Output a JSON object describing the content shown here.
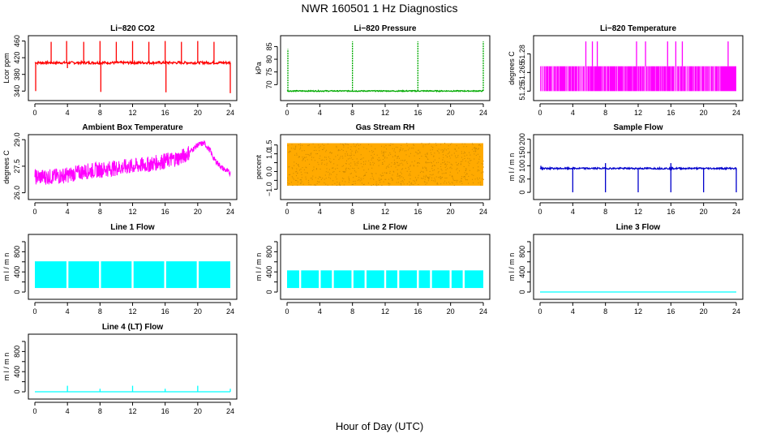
{
  "title": "NWR  160501  1 Hz Diagnostics",
  "xlabel": "Hour of Day (UTC)",
  "chart_data": [
    {
      "type": "line",
      "title": "Li−820 CO2",
      "ylabel": "Lcor ppm",
      "color": "#ff0000",
      "xlim": [
        0,
        24
      ],
      "xticks": [
        0,
        4,
        8,
        12,
        16,
        20,
        24
      ],
      "ylim": [
        325,
        465
      ],
      "yticks": [
        340,
        380,
        420,
        460
      ],
      "ytick_labels": [
        "340",
        "380",
        "420",
        "460"
      ],
      "baseline": 408,
      "noise": 3,
      "spikes": [
        {
          "x": 0.1,
          "y": 340
        },
        {
          "x": 2.0,
          "y": 458
        },
        {
          "x": 3.9,
          "y": 460
        },
        {
          "x": 4.0,
          "y": 395
        },
        {
          "x": 6.0,
          "y": 458
        },
        {
          "x": 8.0,
          "y": 460
        },
        {
          "x": 8.1,
          "y": 338
        },
        {
          "x": 10.0,
          "y": 458
        },
        {
          "x": 12.0,
          "y": 460
        },
        {
          "x": 14.0,
          "y": 458
        },
        {
          "x": 16.0,
          "y": 460
        },
        {
          "x": 16.1,
          "y": 337
        },
        {
          "x": 18.0,
          "y": 458
        },
        {
          "x": 20.0,
          "y": 460
        },
        {
          "x": 22.0,
          "y": 458
        },
        {
          "x": 24.0,
          "y": 335
        }
      ]
    },
    {
      "type": "line",
      "title": "Li−820 Pressure",
      "ylabel": "kPa",
      "color": "#00aa00",
      "xlim": [
        0,
        24
      ],
      "xticks": [
        0,
        4,
        8,
        12,
        16,
        20,
        24
      ],
      "ylim": [
        65,
        88
      ],
      "yticks": [
        70,
        75,
        80,
        85
      ],
      "ytick_labels": [
        "70",
        "75",
        "80",
        "85"
      ],
      "baseline": 67.5,
      "noise": 0.2,
      "spikes": [
        {
          "x": 0.1,
          "y": 84
        },
        {
          "x": 8.0,
          "y": 87
        },
        {
          "x": 16.0,
          "y": 87
        },
        {
          "x": 24.0,
          "y": 87
        }
      ]
    },
    {
      "type": "area",
      "title": "Li−820 Temperature",
      "ylabel": "degrees C",
      "color": "#ff00ff",
      "xlim": [
        0,
        24
      ],
      "xticks": [
        0,
        4,
        8,
        12,
        16,
        20,
        24
      ],
      "ylim": [
        51.245,
        51.292
      ],
      "yticks": [
        51.25,
        51.265,
        51.28
      ],
      "ytick_labels": [
        "51.25",
        "51.265",
        "51.28"
      ],
      "band": [
        51.25,
        51.27
      ],
      "spikes": [
        {
          "x": 5.6,
          "y": 51.29
        },
        {
          "x": 6.4,
          "y": 51.29
        },
        {
          "x": 7.0,
          "y": 51.29
        },
        {
          "x": 11.8,
          "y": 51.29
        },
        {
          "x": 12.9,
          "y": 51.29
        },
        {
          "x": 15.6,
          "y": 51.29
        },
        {
          "x": 16.6,
          "y": 51.29
        },
        {
          "x": 17.4,
          "y": 51.29
        },
        {
          "x": 23.0,
          "y": 51.29
        }
      ]
    },
    {
      "type": "line",
      "title": "Ambient Box Temperature",
      "ylabel": "degrees C",
      "color": "#ff00ff",
      "xlim": [
        0,
        24
      ],
      "xticks": [
        0,
        4,
        8,
        12,
        16,
        20,
        24
      ],
      "ylim": [
        25.8,
        29.1
      ],
      "yticks": [
        26.0,
        27.5,
        29.0
      ],
      "ytick_labels": [
        "26.0",
        "27.5",
        "29.0"
      ],
      "trend": [
        [
          0,
          26.9
        ],
        [
          2,
          26.9
        ],
        [
          4,
          27.0
        ],
        [
          6,
          27.2
        ],
        [
          8,
          27.3
        ],
        [
          10,
          27.4
        ],
        [
          12,
          27.5
        ],
        [
          14,
          27.6
        ],
        [
          16,
          27.8
        ],
        [
          18,
          28.0
        ],
        [
          19,
          28.3
        ],
        [
          20,
          28.7
        ],
        [
          20.8,
          28.8
        ],
        [
          21.5,
          28.4
        ],
        [
          22,
          27.9
        ],
        [
          23,
          27.4
        ],
        [
          24,
          27.1
        ]
      ],
      "noise": 0.45
    },
    {
      "type": "area",
      "title": "Gas Stream RH",
      "ylabel": "percent",
      "color": "#ffaa00",
      "xlim": [
        0,
        24
      ],
      "xticks": [
        0,
        4,
        8,
        12,
        16,
        20,
        24
      ],
      "ylim": [
        -1.4,
        1.9
      ],
      "yticks": [
        -1.0,
        -0.5,
        0.0,
        0.5,
        1.0,
        1.5
      ],
      "ytick_labels": [
        "−1.0",
        "",
        "0.0",
        "",
        "1.0",
        "1.5"
      ],
      "band": [
        -0.8,
        1.6
      ]
    },
    {
      "type": "line",
      "title": "Sample Flow",
      "ylabel": "m l / m n",
      "color": "#0000cc",
      "xlim": [
        0,
        24
      ],
      "xticks": [
        0,
        4,
        8,
        12,
        16,
        20,
        24
      ],
      "ylim": [
        -15,
        205
      ],
      "yticks": [
        0,
        50,
        100,
        150,
        200
      ],
      "ytick_labels": [
        "0",
        "50",
        "100",
        "150",
        "200"
      ],
      "baseline": 90,
      "noise": 3,
      "spikes": [
        {
          "x": 0.1,
          "y": 100
        },
        {
          "x": 4.0,
          "y": 0
        },
        {
          "x": 8.0,
          "y": 0
        },
        {
          "x": 8.0,
          "y": 110
        },
        {
          "x": 12.0,
          "y": 0
        },
        {
          "x": 16.0,
          "y": 0
        },
        {
          "x": 16.0,
          "y": 110
        },
        {
          "x": 20.0,
          "y": 0
        },
        {
          "x": 24.0,
          "y": 0
        }
      ]
    },
    {
      "type": "area",
      "title": "Line 1 Flow",
      "ylabel": "m l / m n",
      "color": "#00ffff",
      "xlim": [
        0,
        24
      ],
      "xticks": [
        0,
        4,
        8,
        12,
        16,
        20,
        24
      ],
      "ylim": [
        -80,
        1080
      ],
      "yticks": [
        0,
        200,
        400,
        600,
        800,
        1000
      ],
      "ytick_labels": [
        "0",
        "",
        "400",
        "",
        "800",
        ""
      ],
      "band": [
        80,
        610
      ],
      "gaps": [
        4,
        8,
        12,
        16,
        20
      ]
    },
    {
      "type": "area",
      "title": "Line 2 Flow",
      "ylabel": "m l / m n",
      "color": "#00ffff",
      "xlim": [
        0,
        24
      ],
      "xticks": [
        0,
        4,
        8,
        12,
        16,
        20,
        24
      ],
      "ylim": [
        -80,
        1080
      ],
      "yticks": [
        0,
        200,
        400,
        600,
        800,
        1000
      ],
      "ytick_labels": [
        "0",
        "",
        "400",
        "",
        "800",
        ""
      ],
      "band": [
        80,
        430
      ],
      "gaps": [
        1.6,
        4,
        5.6,
        8,
        9.6,
        12,
        13.6,
        16,
        17.6,
        20,
        21.6
      ]
    },
    {
      "type": "line",
      "title": "Line 3 Flow",
      "ylabel": "m l / m n",
      "color": "#00ffff",
      "xlim": [
        0,
        24
      ],
      "xticks": [
        0,
        4,
        8,
        12,
        16,
        20,
        24
      ],
      "ylim": [
        -80,
        1080
      ],
      "yticks": [
        0,
        200,
        400,
        600,
        800,
        1000
      ],
      "ytick_labels": [
        "0",
        "",
        "400",
        "",
        "800",
        ""
      ],
      "baseline": 0,
      "noise": 0
    },
    {
      "type": "line",
      "title": "Line 4 (LT) Flow",
      "ylabel": "m l / m n",
      "color": "#00ffff",
      "xlim": [
        0,
        24
      ],
      "xticks": [
        0,
        4,
        8,
        12,
        16,
        20,
        24
      ],
      "ylim": [
        -80,
        1080
      ],
      "yticks": [
        0,
        200,
        400,
        600,
        800,
        1000
      ],
      "ytick_labels": [
        "0",
        "",
        "400",
        "",
        "800",
        ""
      ],
      "baseline": 0,
      "noise": 0,
      "spikes": [
        {
          "x": 4.0,
          "y": 120
        },
        {
          "x": 8.0,
          "y": 60
        },
        {
          "x": 12.0,
          "y": 120
        },
        {
          "x": 16.0,
          "y": 60
        },
        {
          "x": 20.0,
          "y": 120
        },
        {
          "x": 24.0,
          "y": 60
        }
      ]
    }
  ]
}
